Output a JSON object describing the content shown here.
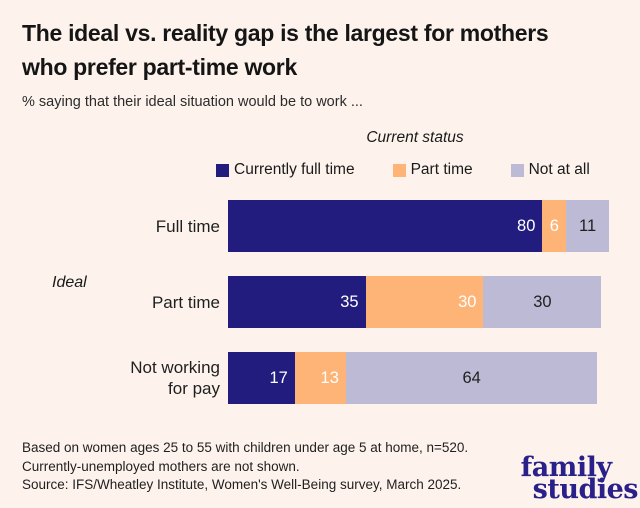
{
  "header": {
    "title": "The ideal vs. reality gap is the largest for mothers\nwho prefer part-time work",
    "subtitle": "% saying that their ideal situation would be to work ..."
  },
  "legend": {
    "title": "Current status",
    "items": [
      {
        "label": "Currently full time",
        "color": "#221c7e"
      },
      {
        "label": "Part time",
        "color": "#fdb476"
      },
      {
        "label": "Not at all",
        "color": "#bdbad6"
      }
    ]
  },
  "chart_data": {
    "type": "bar",
    "stacked": true,
    "orientation": "horizontal",
    "group_axis_label": "Ideal",
    "categories": [
      "Full time",
      "Part time",
      "Not working\nfor pay"
    ],
    "series": [
      {
        "name": "Currently full time",
        "color": "#221c7e",
        "label_color": "#ffffff",
        "label_align": "right",
        "values": [
          80,
          35,
          17
        ]
      },
      {
        "name": "Part time",
        "color": "#fdb476",
        "label_color": "#ffffff",
        "label_align": "right",
        "values": [
          6,
          30,
          13
        ]
      },
      {
        "name": "Not at all",
        "color": "#bdbad6",
        "label_color": "#1f1f1f",
        "label_align": "center",
        "values": [
          11,
          30,
          64
        ]
      }
    ],
    "value_unit": "%",
    "xlim": [
      0,
      100
    ],
    "legend_position": "top"
  },
  "footer": {
    "lines": [
      "Based on women ages 25 to 55 with children under age 5 at home, n=520.",
      "Currently-unemployed mothers are not shown.",
      "Source: IFS/Wheatley Institute, Women's Well-Being survey, March 2025."
    ]
  },
  "logo": {
    "line1": "family",
    "line2": "studies",
    "color": "#29208a"
  }
}
